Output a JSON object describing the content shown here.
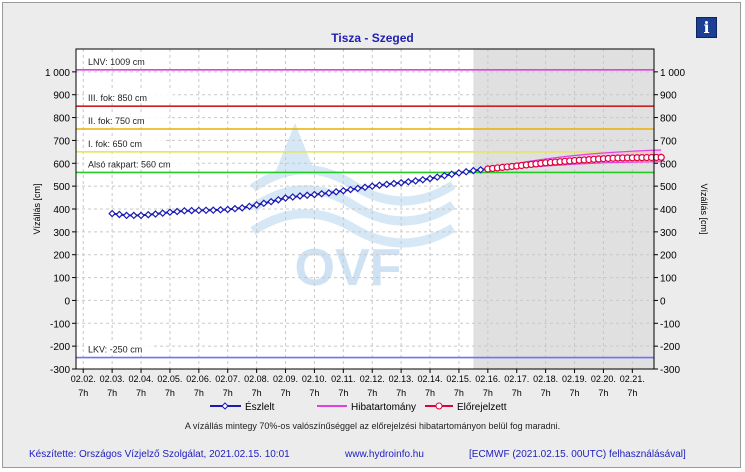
{
  "header": {
    "title": "Tisza - Szeged",
    "info_icon": "info-icon"
  },
  "y_axis_label": "Vízállás [cm]",
  "x_tick_day_labels": [
    "02.02.",
    "02.03.",
    "02.04.",
    "02.05.",
    "02.06.",
    "02.07.",
    "02.08.",
    "02.09.",
    "02.10.",
    "02.11.",
    "02.12.",
    "02.13.",
    "02.14.",
    "02.15.",
    "02.16.",
    "02.17.",
    "02.18.",
    "02.19.",
    "02.20.",
    "02.21."
  ],
  "x_tick_hour_label": "7h",
  "legend": {
    "observed": "Észlelt",
    "error_range": "Hibatartomány",
    "forecast": "Előrejelzett"
  },
  "caption": "A vízállás mintegy 70%-os valószínűséggel az előrejelzési hibatartományon belül fog maradni.",
  "footer": {
    "author": "Készítette: Országos Vízjelző Szolgálat, 2021.02.15. 10:01",
    "website": "www.hydroinfo.hu",
    "model": "[ECMWF (2021.02.15. 00UTC) felhasználásával]"
  },
  "watermark": "OVF",
  "colors": {
    "observed": "#1a1ab4",
    "forecast": "#e0003a",
    "error_range": "#e040e0",
    "lnv": "#e040e0",
    "lkv": "#7070ff",
    "level3": "#cc2020",
    "level2": "#e8b000",
    "level1": "#e8e850",
    "lower_quay": "#22cc22",
    "forecast_bg": "#e0e0e0"
  },
  "chart_data": {
    "type": "line",
    "title": "Tisza - Szeged",
    "ylabel": "Vízállás [cm]",
    "ylim": [
      -300,
      1100
    ],
    "y_ticks": [
      1000,
      900,
      800,
      700,
      600,
      500,
      400,
      300,
      200,
      100,
      0,
      -100,
      -200,
      -300
    ],
    "y_tick_labels": [
      "1 000",
      "900",
      "800",
      "700",
      "600",
      "500",
      "400",
      "300",
      "200",
      "100",
      "0",
      "-100",
      "-200",
      "-300"
    ],
    "x_start": "02.02. 7h",
    "x_end": "02.21. 7h",
    "forecast_start": "02.15. 7h",
    "grid": true,
    "reference_levels": [
      {
        "name": "LNV: 1009 cm",
        "value": 1009,
        "color_key": "lnv"
      },
      {
        "name": "III. fok: 850 cm",
        "value": 850,
        "color_key": "level3"
      },
      {
        "name": "II. fok: 750 cm",
        "value": 750,
        "color_key": "level2"
      },
      {
        "name": "I. fok: 650 cm",
        "value": 650,
        "color_key": "level1"
      },
      {
        "name": "Alsó rakpart: 560 cm",
        "value": 560,
        "color_key": "lower_quay"
      },
      {
        "name": "LKV: -250 cm",
        "value": -250,
        "color_key": "lkv"
      }
    ],
    "series": [
      {
        "name": "Észlelt",
        "x_days": [
          1,
          1.5,
          2,
          2.5,
          3,
          3.5,
          4,
          4.5,
          5,
          5.5,
          6,
          6.5,
          7,
          7.5,
          8,
          8.5,
          9,
          9.5,
          10,
          10.5,
          11,
          11.5,
          12,
          12.5,
          13,
          13.5,
          14
        ],
        "values": [
          380,
          372,
          372,
          378,
          386,
          392,
          394,
          395,
          398,
          405,
          418,
          432,
          448,
          457,
          463,
          470,
          480,
          490,
          500,
          508,
          515,
          523,
          533,
          546,
          558,
          568,
          575
        ]
      },
      {
        "name": "Előrejelzett",
        "x_days": [
          14,
          14.5,
          15,
          15.5,
          16,
          16.5,
          17,
          17.5,
          18,
          18.5,
          19,
          19.5,
          20
        ],
        "values": [
          575,
          582,
          588,
          595,
          602,
          607,
          612,
          616,
          620,
          623,
          624,
          625,
          626
        ]
      },
      {
        "name": "Hibatartomány",
        "x_days": [
          14,
          14.5,
          15,
          15.5,
          16,
          16.5,
          17,
          17.5,
          18,
          18.5,
          19,
          19.5,
          20
        ],
        "upper": [
          577,
          590,
          600,
          610,
          619,
          627,
          634,
          640,
          645,
          649,
          653,
          656,
          658
        ],
        "lower": [
          573,
          578,
          580,
          584,
          588,
          592,
          596,
          599,
          602,
          604,
          605,
          606,
          607
        ]
      }
    ]
  }
}
